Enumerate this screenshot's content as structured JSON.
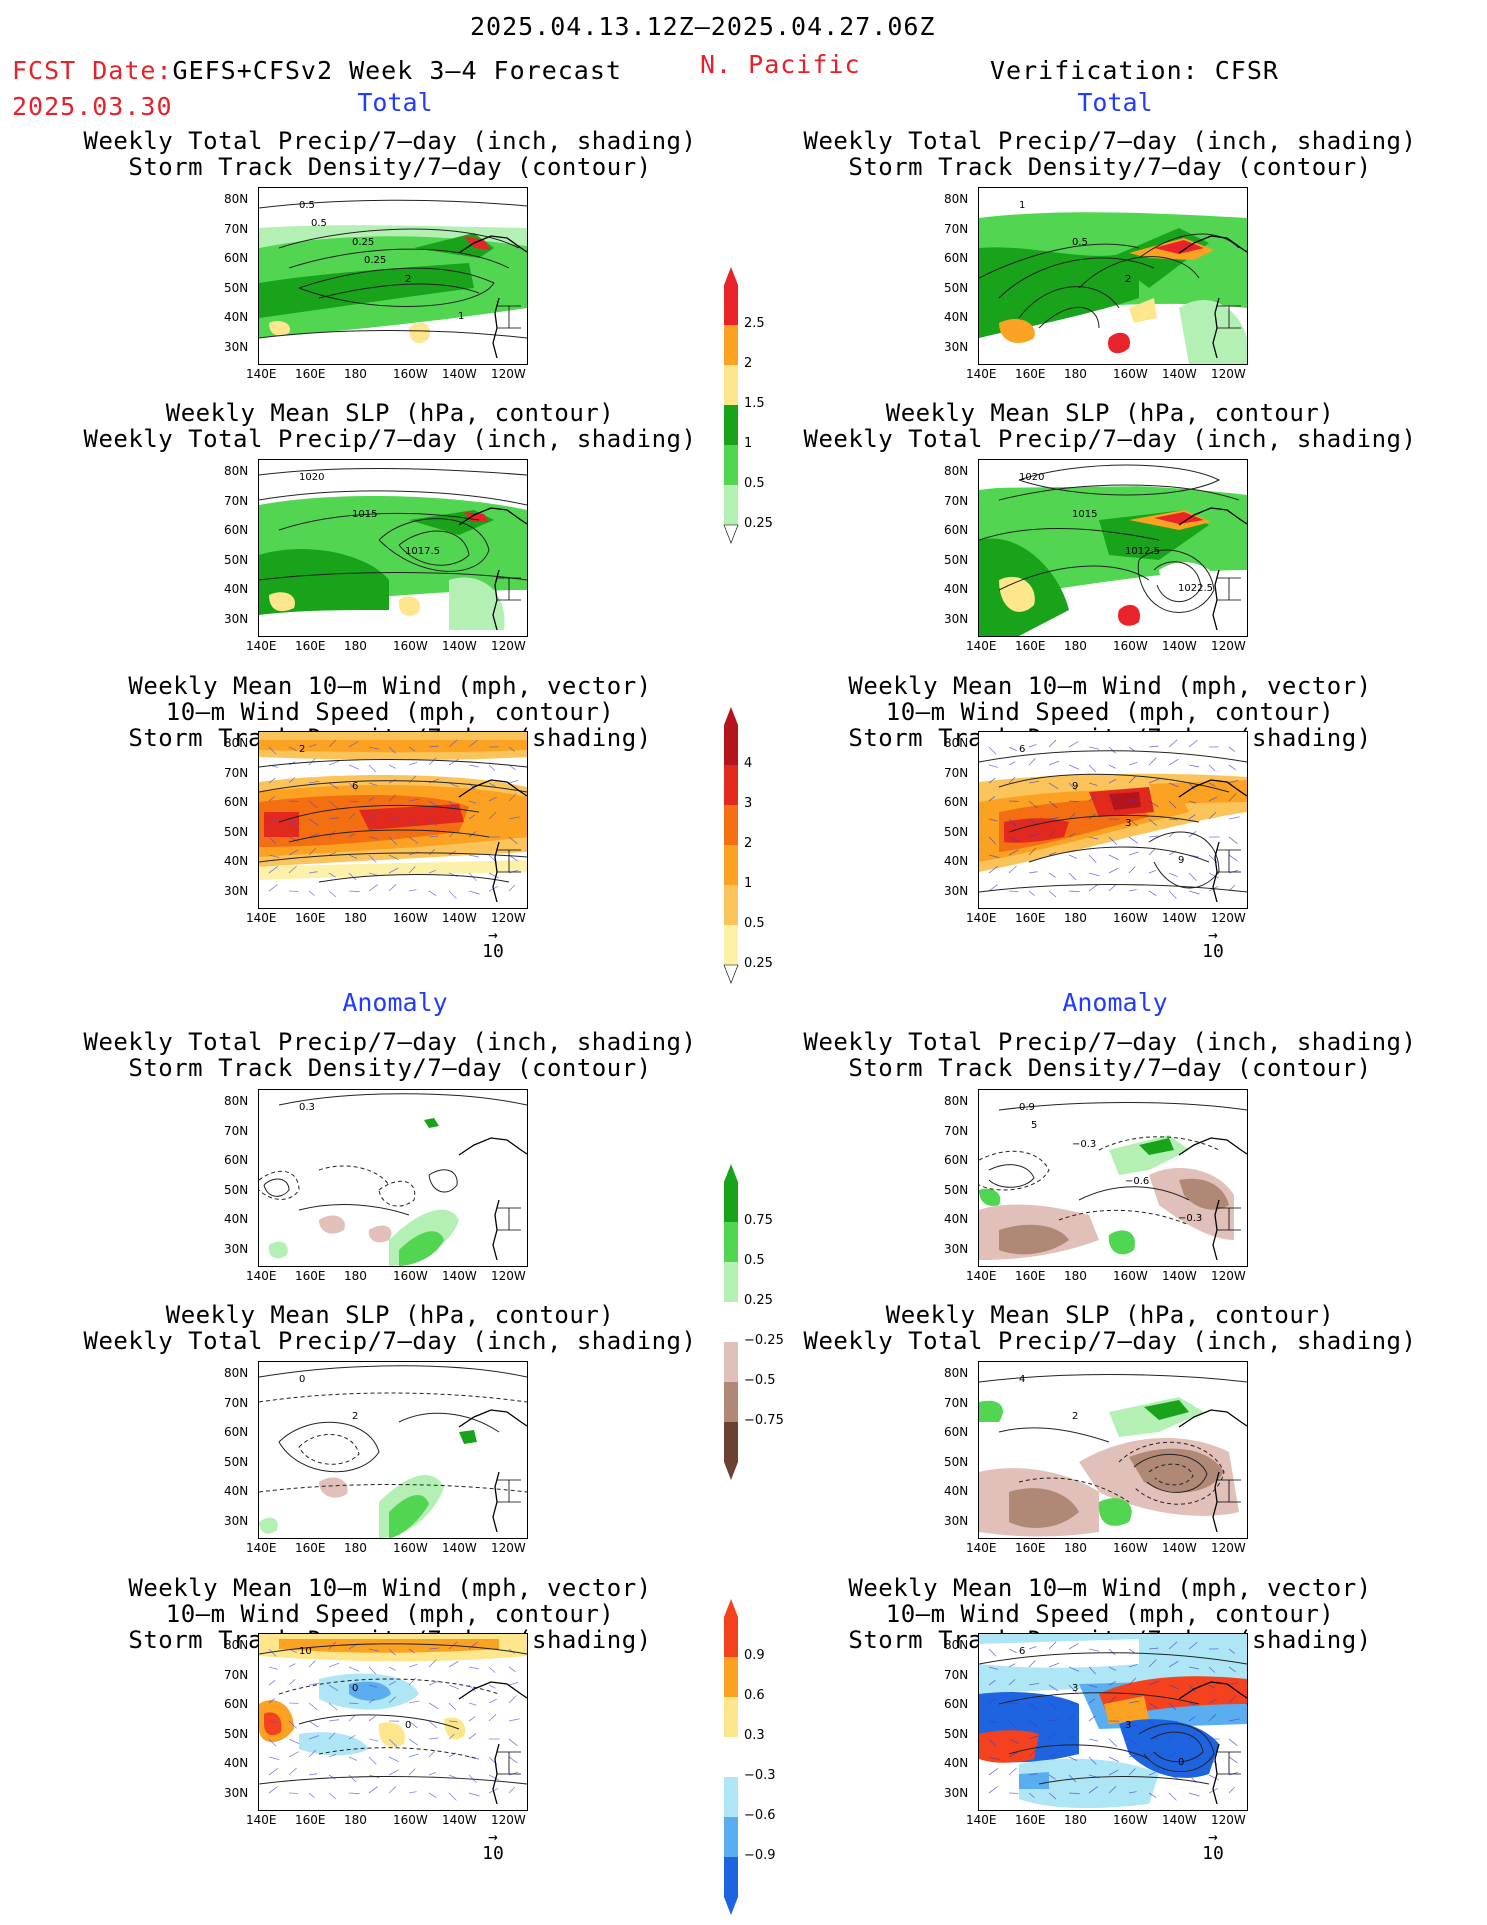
{
  "header": {
    "period": "2025.04.13.12Z–2025.04.27.06Z",
    "fcst_label": "FCST Date:",
    "forecast_name": "GEFS+CFSv2 Week 3–4 Forecast",
    "fcst_date": "2025.03.30",
    "region": "N. Pacific",
    "verification": "Verification: CFSR"
  },
  "sections": {
    "total": "Total",
    "anomaly": "Anomaly"
  },
  "titles": {
    "precip_track": [
      "Weekly Total Precip/7–day (inch, shading)",
      "Storm Track Density/7–day (contour)"
    ],
    "slp_precip": [
      "Weekly Mean SLP (hPa, contour)",
      "Weekly Total Precip/7–day (inch, shading)"
    ],
    "wind_track": [
      "Weekly Mean 10–m Wind (mph, vector)",
      "10–m Wind Speed (mph, contour)",
      "Storm Track Density/7–day (shading)"
    ]
  },
  "axes": {
    "lat_ticks": [
      "80N",
      "70N",
      "60N",
      "50N",
      "40N",
      "30N"
    ],
    "lon_ticks": [
      "140E",
      "160E",
      "180",
      "160W",
      "140W",
      "120W"
    ]
  },
  "vector_ref": "10",
  "colorbars": {
    "precip_total": {
      "labels": [
        "2.5",
        "2",
        "1.5",
        "1",
        "0.5",
        "0.25"
      ],
      "colors": [
        "#e8242a",
        "#fca222",
        "#fde68c",
        "#18a31a",
        "#52d652",
        "#b4f0b4"
      ]
    },
    "track_total": {
      "labels": [
        "4",
        "3",
        "2",
        "1",
        "0.5",
        "0.25"
      ],
      "colors": [
        "#b4141c",
        "#e2291d",
        "#f46f12",
        "#fca222",
        "#fbc45a",
        "#fdf0a8"
      ]
    },
    "precip_anom": {
      "labels": [
        "0.75",
        "0.5",
        "0.25",
        "−0.25",
        "−0.5",
        "−0.75"
      ],
      "colors": [
        "#18a31a",
        "#52d652",
        "#b4f0b4",
        "#ffffff",
        "#e0c0b8",
        "#b08876",
        "#6b4232"
      ]
    },
    "track_anom": {
      "labels": [
        "0.9",
        "0.6",
        "0.3",
        "−0.3",
        "−0.6",
        "−0.9"
      ],
      "colors": [
        "#f4421e",
        "#fca222",
        "#fde68c",
        "#ffffff",
        "#aee6f6",
        "#5aaef0",
        "#1e64e0"
      ]
    }
  },
  "contour_labels": {
    "p1": [
      "0.5",
      "0.25",
      "2",
      "1",
      "0.5",
      "0.25"
    ],
    "p2": [
      "1",
      "0.5",
      "2"
    ],
    "p3": [
      "1020",
      "1015",
      "1017.5"
    ],
    "p4": [
      "1020",
      "1015",
      "1012.5",
      "1022.5"
    ],
    "p5": [
      "2",
      "6"
    ],
    "p6": [
      "6",
      "9",
      "3",
      "9"
    ],
    "p7": [
      "0.3"
    ],
    "p8": [
      "0.9",
      "−0.3",
      "−0.6",
      "−0.3",
      "5"
    ],
    "p9": [
      "0",
      "2"
    ],
    "p10": [
      "4",
      "2"
    ],
    "p11": [
      "10",
      "0",
      "0"
    ],
    "p12": [
      "6",
      "3",
      "3",
      "0"
    ]
  },
  "chart_data": {
    "type": "heatmap",
    "title": "2025.04.13.12Z–2025.04.27.06Z",
    "region": "N. Pacific",
    "columns": [
      "GEFS+CFSv2 Week 3–4 Forecast",
      "Verification: CFSR"
    ],
    "sections": [
      "Total",
      "Anomaly"
    ],
    "lat_range": [
      "25N",
      "85N"
    ],
    "lon_range": [
      "140E",
      "110W"
    ],
    "panels": [
      {
        "row": "Total",
        "variables": [
          "Weekly Total Precip/7–day (inch, shading)",
          "Storm Track Density/7–day (contour)"
        ]
      },
      {
        "row": "Total",
        "variables": [
          "Weekly Mean SLP (hPa, contour)",
          "Weekly Total Precip/7–day (inch, shading)"
        ]
      },
      {
        "row": "Total",
        "variables": [
          "Weekly Mean 10–m Wind (mph, vector)",
          "10–m Wind Speed (mph, contour)",
          "Storm Track Density/7–day (shading)"
        ]
      },
      {
        "row": "Anomaly",
        "variables": [
          "Weekly Total Precip/7–day (inch, shading)",
          "Storm Track Density/7–day (contour)"
        ]
      },
      {
        "row": "Anomaly",
        "variables": [
          "Weekly Mean SLP (hPa, contour)",
          "Weekly Total Precip/7–day (inch, shading)"
        ]
      },
      {
        "row": "Anomaly",
        "variables": [
          "Weekly Mean 10–m Wind (mph, vector)",
          "10–m Wind Speed (mph, contour)",
          "Storm Track Density/7–day (shading)"
        ]
      }
    ]
  }
}
